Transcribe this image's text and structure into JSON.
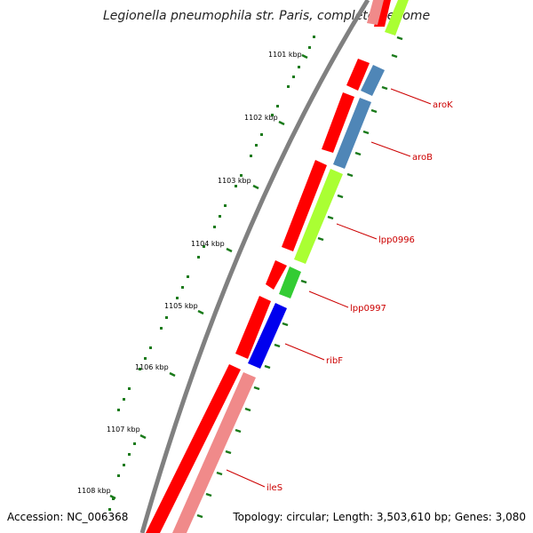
{
  "title": "Legionella pneumophila str. Paris, complete genome",
  "footer": {
    "accession": "Accession: NC_006368",
    "summary": "Topology: circular; Length: 3,503,610 bp; Genes: 3,080"
  },
  "colors": {
    "backbone": "#808080",
    "tick": "#1a7a1a",
    "label_line": "#cc0000",
    "cds_forward": "#ff0000",
    "cds_reverse_pink": "#f08a8a"
  },
  "axis": {
    "tick_labels": [
      "1101 kbp",
      "1102 kbp",
      "1103 kbp",
      "1104 kbp",
      "1105 kbp",
      "1106 kbp",
      "1107 kbp",
      "1108 kbp"
    ]
  },
  "genes": [
    {
      "name": "aroK",
      "color": "#4f86b7"
    },
    {
      "name": "aroB",
      "color": "#4f86b7"
    },
    {
      "name": "lpp0996",
      "color": "#aaff33"
    },
    {
      "name": "lpp0997",
      "color": "#33cc33"
    },
    {
      "name": "ribF",
      "color": "#0000ee"
    },
    {
      "name": "ileS",
      "color": "#f08a8a"
    }
  ]
}
